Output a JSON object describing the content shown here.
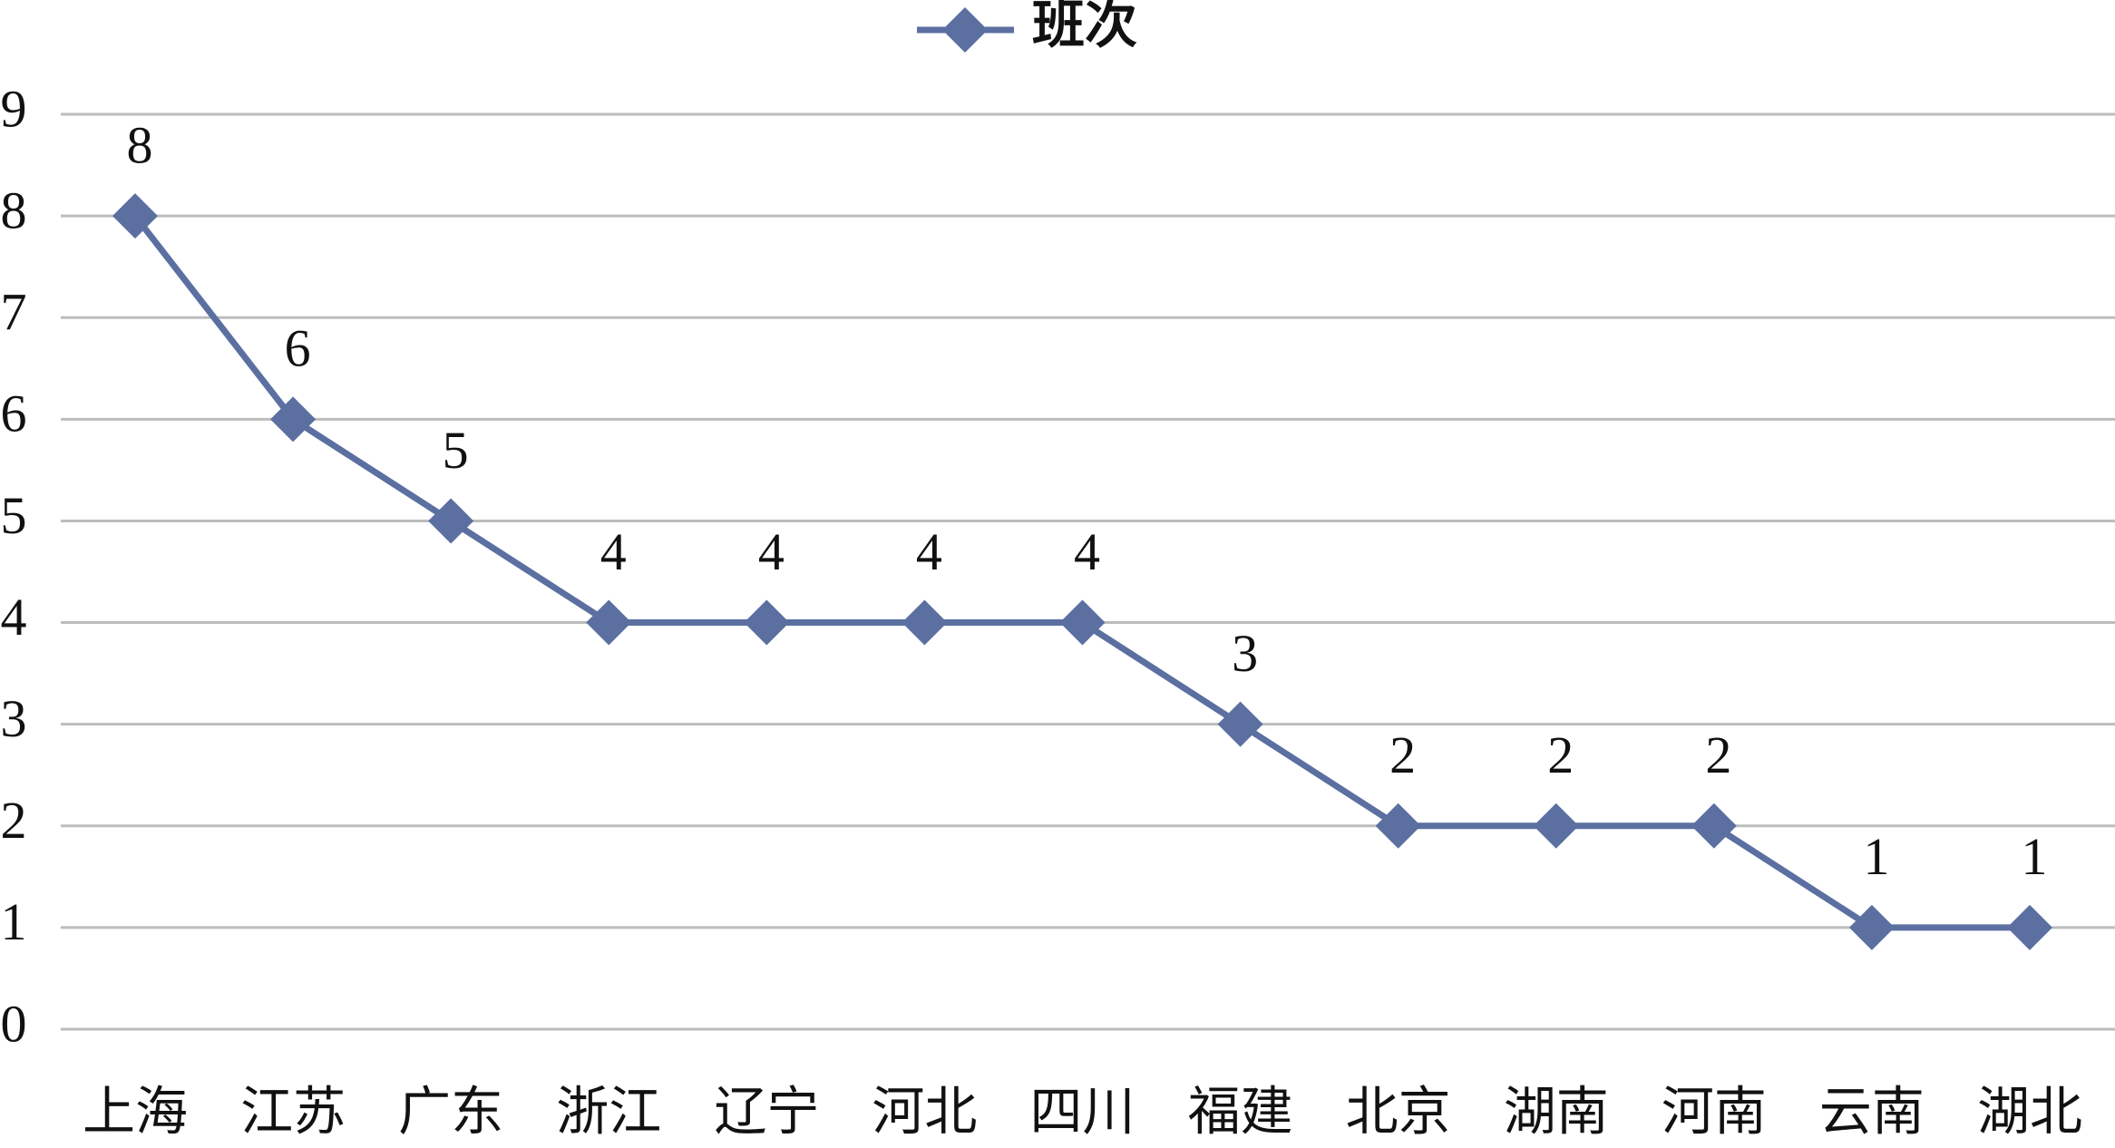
{
  "chart_data": {
    "type": "line",
    "categories": [
      "上海",
      "江苏",
      "广东",
      "浙江",
      "辽宁",
      "河北",
      "四川",
      "福建",
      "北京",
      "湖南",
      "河南",
      "云南",
      "湖北"
    ],
    "series": [
      {
        "name": "班次",
        "color": "#5b6fa1",
        "values": [
          8,
          6,
          5,
          4,
          4,
          4,
          4,
          3,
          2,
          2,
          2,
          1,
          1
        ]
      }
    ],
    "ylim": [
      0,
      9
    ],
    "yticks": [
      0,
      1,
      2,
      3,
      4,
      5,
      6,
      7,
      8,
      9
    ],
    "grid": true,
    "legend": "top",
    "data_labels": true
  }
}
